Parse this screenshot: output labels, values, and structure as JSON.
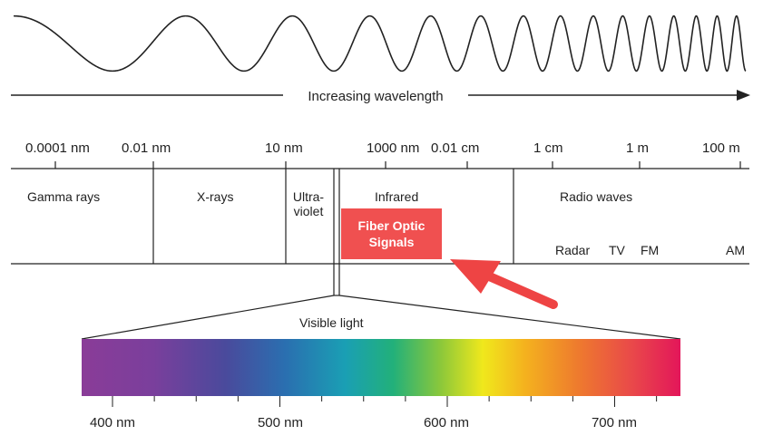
{
  "wavelength_arrow_label": "Increasing wavelength",
  "scale_labels": [
    "0.0001 nm",
    "0.01 nm",
    "10 nm",
    "1000 nm",
    "0.01 cm",
    "1 cm",
    "1 m",
    "100 m"
  ],
  "regions": {
    "gamma": "Gamma rays",
    "xrays": "X-rays",
    "uv_line1": "Ultra-",
    "uv_line2": "violet",
    "infrared": "Infrared",
    "radio": "Radio waves"
  },
  "radio_sub": [
    "Radar",
    "TV",
    "FM",
    "AM"
  ],
  "highlight": {
    "line1": "Fiber Optic",
    "line2": "Signals",
    "color": "#f05050"
  },
  "visible_label": "Visible light",
  "visible_ticks": [
    "400 nm",
    "500 nm",
    "600 nm",
    "700 nm"
  ],
  "arrow_color": "#ee4444"
}
